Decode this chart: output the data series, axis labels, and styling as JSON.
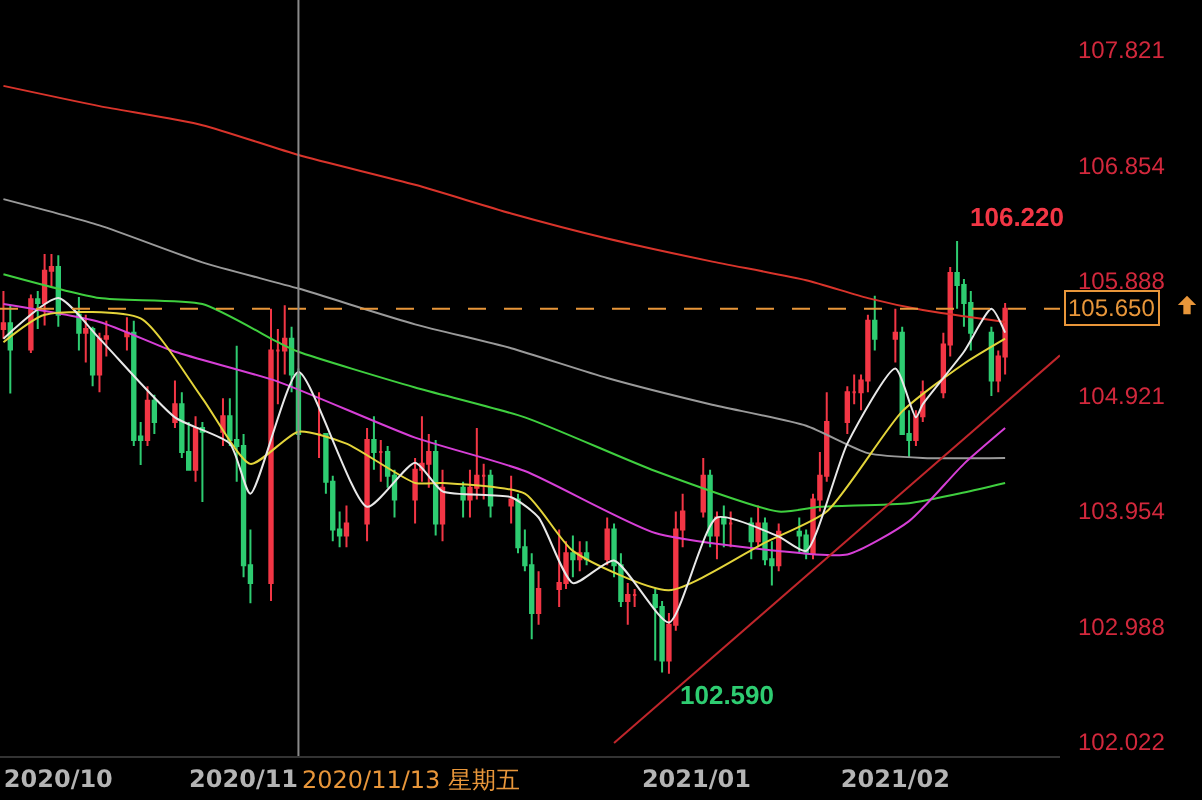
{
  "chart_data": {
    "type": "candlestick",
    "grid": false,
    "colors": [
      "#f23645",
      "#2ecc71",
      "#f23645",
      "#2ecc71",
      "#f23645",
      "#f23645",
      "#2ecc71",
      "#2ecc71",
      "#f23645",
      "#2ecc71",
      "#f23645",
      "#f23645",
      "#f23645",
      "#2ecc71",
      "#2ecc71",
      "#f23645",
      "#2ecc71",
      "#f23645",
      "#2ecc71",
      "#2ecc71",
      "#f23645",
      "#2ecc71",
      "#f23645",
      "#2ecc71",
      "#2ecc71",
      "#2ecc71",
      "#2ecc71",
      "#f23645",
      "#f23645",
      "#f23645",
      "#2ecc71",
      "#2ecc71",
      "#f23645",
      "#2ecc71",
      "#2ecc71",
      "#2ecc71",
      "#f23645",
      "#f23645",
      "#2ecc71",
      "#f23645",
      "#2ecc71",
      "#2ecc71",
      "#f23645",
      "#f23645",
      "#f23645",
      "#2ecc71",
      "#f23645",
      "#2ecc71",
      "#f23645",
      "#f23645",
      "#f23645",
      "#2ecc71",
      "#f23645",
      "#2ecc71",
      "#2ecc71",
      "#2ecc71",
      "#f23645",
      "#f23645",
      "#f23645",
      "#2ecc71",
      "#f23645",
      "#2ecc71",
      "#f23645",
      "#2ecc71",
      "#2ecc71",
      "#f23645",
      "#f23645",
      "#2ecc71",
      "#2ecc71",
      "#f23645",
      "#f23645",
      "#f23645",
      "#f23645",
      "#2ecc71",
      "#f23645",
      "#2ecc71",
      "#f23645",
      "#2ecc71",
      "#f23645",
      "#2ecc71",
      "#2ecc71",
      "#f23645",
      "#2ecc71",
      "#2ecc71",
      "#f23645",
      "#f23645",
      "#f23645",
      "#f23645",
      "#f23645",
      "#f23645",
      "#f23645",
      "#2ecc71",
      "#f23645",
      "#2ecc71",
      "#2ecc71",
      "#f23645",
      "#f23645",
      "#f23645",
      "#f23645",
      "#2ecc71",
      "#2ecc71",
      "#2ecc71",
      "#2ecc71",
      "#f23645",
      "#f23645"
    ],
    "x": [
      "2020-10-01",
      "2020-10-02",
      "2020-10-05",
      "2020-10-06",
      "2020-10-07",
      "2020-10-08",
      "2020-10-09",
      "2020-10-12",
      "2020-10-13",
      "2020-10-14",
      "2020-10-15",
      "2020-10-16",
      "2020-10-19",
      "2020-10-20",
      "2020-10-21",
      "2020-10-22",
      "2020-10-23",
      "2020-10-26",
      "2020-10-27",
      "2020-10-28",
      "2020-10-29",
      "2020-10-30",
      "2020-11-02",
      "2020-11-03",
      "2020-11-04",
      "2020-11-05",
      "2020-11-06",
      "2020-11-09",
      "2020-11-10",
      "2020-11-11",
      "2020-11-12",
      "2020-11-13",
      "2020-11-16",
      "2020-11-17",
      "2020-11-18",
      "2020-11-19",
      "2020-11-20",
      "2020-11-23",
      "2020-11-24",
      "2020-11-25",
      "2020-11-26",
      "2020-11-27",
      "2020-11-30",
      "2020-12-01",
      "2020-12-02",
      "2020-12-03",
      "2020-12-04",
      "2020-12-07",
      "2020-12-08",
      "2020-12-09",
      "2020-12-10",
      "2020-12-11",
      "2020-12-14",
      "2020-12-15",
      "2020-12-16",
      "2020-12-17",
      "2020-12-18",
      "2020-12-21",
      "2020-12-22",
      "2020-12-23",
      "2020-12-24",
      "2020-12-25",
      "2020-12-28",
      "2020-12-29",
      "2020-12-30",
      "2020-12-31",
      "2021-01-01",
      "2021-01-04",
      "2021-01-05",
      "2021-01-06",
      "2021-01-07",
      "2021-01-08",
      "2021-01-11",
      "2021-01-12",
      "2021-01-13",
      "2021-01-14",
      "2021-01-15",
      "2021-01-18",
      "2021-01-19",
      "2021-01-20",
      "2021-01-21",
      "2021-01-22",
      "2021-01-25",
      "2021-01-26",
      "2021-01-27",
      "2021-01-28",
      "2021-01-29",
      "2021-02-01",
      "2021-02-02",
      "2021-02-03",
      "2021-02-04",
      "2021-02-05",
      "2021-02-08",
      "2021-02-09",
      "2021-02-10",
      "2021-02-11",
      "2021-02-12",
      "2021-02-15",
      "2021-02-16",
      "2021-02-17",
      "2021-02-18",
      "2021-02-19",
      "2021-02-22",
      "2021-02-23",
      "2021-02-24"
    ],
    "ohlc": [
      [
        105.48,
        105.8,
        105.4,
        105.53
      ],
      [
        105.53,
        105.68,
        104.94,
        105.31
      ],
      [
        105.31,
        105.77,
        105.28,
        105.73
      ],
      [
        105.73,
        105.8,
        105.48,
        105.7
      ],
      [
        105.7,
        106.11,
        105.51,
        105.97
      ],
      [
        105.97,
        106.11,
        105.84,
        106.0
      ],
      [
        106.0,
        106.1,
        105.5,
        105.6
      ],
      [
        105.6,
        105.75,
        105.3,
        105.45
      ],
      [
        105.45,
        105.6,
        105.2,
        105.48
      ],
      [
        105.48,
        105.5,
        105.0,
        105.1
      ],
      [
        105.1,
        105.45,
        104.95,
        105.4
      ],
      [
        105.4,
        105.55,
        105.25,
        105.42
      ],
      [
        105.42,
        105.58,
        105.3,
        105.45
      ],
      [
        105.45,
        105.55,
        104.5,
        104.55
      ],
      [
        104.58,
        104.7,
        104.34,
        104.55
      ],
      [
        104.55,
        105.0,
        104.5,
        104.88
      ],
      [
        104.88,
        104.93,
        104.6,
        104.7
      ],
      [
        104.7,
        105.05,
        104.65,
        104.85
      ],
      [
        104.85,
        104.95,
        104.4,
        104.45
      ],
      [
        104.45,
        104.7,
        104.3,
        104.3
      ],
      [
        104.3,
        104.75,
        104.2,
        104.65
      ],
      [
        104.65,
        104.7,
        104.03,
        104.62
      ],
      [
        104.62,
        104.9,
        104.5,
        104.75
      ],
      [
        104.75,
        104.9,
        104.5,
        104.55
      ],
      [
        104.55,
        105.34,
        104.2,
        104.5
      ],
      [
        104.5,
        104.6,
        103.4,
        103.5
      ],
      [
        103.5,
        103.8,
        103.18,
        103.35
      ],
      [
        103.35,
        105.65,
        103.2,
        105.3
      ],
      [
        105.3,
        105.48,
        104.85,
        105.3
      ],
      [
        105.3,
        105.68,
        105.1,
        105.4
      ],
      [
        105.4,
        105.5,
        104.95,
        105.1
      ],
      [
        105.1,
        105.15,
        104.55,
        104.6
      ],
      [
        104.6,
        104.95,
        104.4,
        104.6
      ],
      [
        104.6,
        104.6,
        104.1,
        104.2
      ],
      [
        104.2,
        104.25,
        103.7,
        103.8
      ],
      [
        103.8,
        103.95,
        103.65,
        103.75
      ],
      [
        103.75,
        104.0,
        103.65,
        103.85
      ],
      [
        103.85,
        104.65,
        103.7,
        104.55
      ],
      [
        104.55,
        104.75,
        104.3,
        104.45
      ],
      [
        104.45,
        104.55,
        104.2,
        104.45
      ],
      [
        104.45,
        104.5,
        104.15,
        104.25
      ],
      [
        104.25,
        104.3,
        103.9,
        104.05
      ],
      [
        104.05,
        104.4,
        103.85,
        104.3
      ],
      [
        104.3,
        104.75,
        104.2,
        104.35
      ],
      [
        104.35,
        104.6,
        104.15,
        104.45
      ],
      [
        104.45,
        104.55,
        103.75,
        103.85
      ],
      [
        103.85,
        104.3,
        103.7,
        104.15
      ],
      [
        104.15,
        104.2,
        103.9,
        104.05
      ],
      [
        104.05,
        104.3,
        103.9,
        104.15
      ],
      [
        104.15,
        104.65,
        104.05,
        104.25
      ],
      [
        104.25,
        104.35,
        104.05,
        104.25
      ],
      [
        104.25,
        104.3,
        103.9,
        104.0
      ],
      [
        104.0,
        104.25,
        103.85,
        104.05
      ],
      [
        104.05,
        104.1,
        103.6,
        103.65
      ],
      [
        103.65,
        103.8,
        103.45,
        103.5
      ],
      [
        103.5,
        103.6,
        102.88,
        103.1
      ],
      [
        103.1,
        103.45,
        103.0,
        103.3
      ],
      [
        103.3,
        103.8,
        103.15,
        103.35
      ],
      [
        103.35,
        103.7,
        103.3,
        103.6
      ],
      [
        103.6,
        103.75,
        103.4,
        103.55
      ],
      [
        103.55,
        103.7,
        103.45,
        103.6
      ],
      [
        103.6,
        103.7,
        103.5,
        103.55
      ],
      [
        103.55,
        103.9,
        103.5,
        103.8
      ],
      [
        103.8,
        103.85,
        103.4,
        103.5
      ],
      [
        103.5,
        103.6,
        103.15,
        103.2
      ],
      [
        103.2,
        103.35,
        103.0,
        103.25
      ],
      [
        103.25,
        103.3,
        103.15,
        103.25
      ],
      [
        103.25,
        103.3,
        102.7,
        103.15
      ],
      [
        103.15,
        103.2,
        102.6,
        102.7
      ],
      [
        102.7,
        103.1,
        102.59,
        103.0
      ],
      [
        103.0,
        103.95,
        102.95,
        103.8
      ],
      [
        103.8,
        104.1,
        103.65,
        103.95
      ],
      [
        103.95,
        104.4,
        103.9,
        104.25
      ],
      [
        104.25,
        104.3,
        103.65,
        103.75
      ],
      [
        103.75,
        103.95,
        103.55,
        103.9
      ],
      [
        103.9,
        104.0,
        103.65,
        103.85
      ],
      [
        103.85,
        103.95,
        103.65,
        103.85
      ],
      [
        103.85,
        103.9,
        103.55,
        103.7
      ],
      [
        103.7,
        104.0,
        103.65,
        103.85
      ],
      [
        103.85,
        103.9,
        103.5,
        103.55
      ],
      [
        103.55,
        103.7,
        103.33,
        103.5
      ],
      [
        103.5,
        103.85,
        103.45,
        103.78
      ],
      [
        103.78,
        103.9,
        103.6,
        103.75
      ],
      [
        103.75,
        103.8,
        103.55,
        103.6
      ],
      [
        103.6,
        104.1,
        103.55,
        104.05
      ],
      [
        104.05,
        104.45,
        103.95,
        104.25
      ],
      [
        104.25,
        104.95,
        104.2,
        104.7
      ],
      [
        104.7,
        105.0,
        104.6,
        104.95
      ],
      [
        104.95,
        105.1,
        104.85,
        104.95
      ],
      [
        104.95,
        105.1,
        104.8,
        105.05
      ],
      [
        105.05,
        105.6,
        104.95,
        105.55
      ],
      [
        105.55,
        105.76,
        105.3,
        105.4
      ],
      [
        105.4,
        105.65,
        105.2,
        105.45
      ],
      [
        105.45,
        105.5,
        104.6,
        104.6
      ],
      [
        104.6,
        104.8,
        104.4,
        104.55
      ],
      [
        104.55,
        104.8,
        104.5,
        104.75
      ],
      [
        104.75,
        105.05,
        104.7,
        104.95
      ],
      [
        104.95,
        105.45,
        104.9,
        105.35
      ],
      [
        105.35,
        106.0,
        105.25,
        105.95
      ],
      [
        105.95,
        106.22,
        105.65,
        105.85
      ],
      [
        105.85,
        105.9,
        105.5,
        105.7
      ],
      [
        105.7,
        105.8,
        105.3,
        105.45
      ],
      [
        105.45,
        105.5,
        104.92,
        105.05
      ],
      [
        105.05,
        105.3,
        104.95,
        105.25
      ],
      [
        105.25,
        105.7,
        105.1,
        105.65
      ]
    ],
    "series": [
      {
        "type": "line",
        "color": "#d9342b",
        "x": [
          "2020-10-01",
          "2020-10-15",
          "2020-10-30",
          "2020-11-13",
          "2020-11-30",
          "2020-12-14",
          "2020-12-28",
          "2021-01-12",
          "2021-01-26",
          "2021-02-04",
          "2021-02-12",
          "2021-02-24"
        ],
        "values": [
          107.52,
          107.35,
          107.19,
          106.94,
          106.69,
          106.45,
          106.24,
          106.05,
          105.89,
          105.74,
          105.64,
          105.54
        ]
      },
      {
        "type": "line",
        "color": "#9a9a9a",
        "x": [
          "2020-10-01",
          "2020-10-15",
          "2020-10-30",
          "2020-11-13",
          "2020-11-30",
          "2020-12-14",
          "2020-12-28",
          "2021-01-12",
          "2021-01-26",
          "2021-02-04",
          "2021-02-12",
          "2021-02-24"
        ],
        "values": [
          106.57,
          106.35,
          106.04,
          105.82,
          105.52,
          105.32,
          105.07,
          104.85,
          104.67,
          104.44,
          104.4,
          104.4
        ]
      },
      {
        "type": "line",
        "color": "#3fcf3f",
        "x": [
          "2020-10-01",
          "2020-10-15",
          "2020-10-30",
          "2020-11-10",
          "2020-11-13",
          "2020-11-30",
          "2020-12-16",
          "2021-01-04",
          "2021-01-22",
          "2021-01-28",
          "2021-02-10",
          "2021-02-18",
          "2021-02-24"
        ],
        "values": [
          105.94,
          105.74,
          105.69,
          105.37,
          105.29,
          104.99,
          104.74,
          104.29,
          103.95,
          103.99,
          104.02,
          104.11,
          104.19
        ]
      },
      {
        "type": "line",
        "color": "#d63fd6",
        "x": [
          "2020-10-01",
          "2020-10-15",
          "2020-10-26",
          "2020-11-10",
          "2020-11-30",
          "2020-12-16",
          "2021-01-04",
          "2021-01-22",
          "2021-02-01",
          "2021-02-10",
          "2021-02-18",
          "2021-02-24"
        ],
        "values": [
          105.69,
          105.54,
          105.29,
          105.04,
          104.57,
          104.29,
          103.77,
          103.62,
          103.59,
          103.87,
          104.35,
          104.65
        ]
      },
      {
        "type": "line",
        "color": "#e3d43a",
        "x": [
          "2020-10-01",
          "2020-10-07",
          "2020-10-21",
          "2020-10-30",
          "2020-11-06",
          "2020-11-13",
          "2020-11-20",
          "2020-11-30",
          "2020-12-04",
          "2020-12-16",
          "2020-12-23",
          "2021-01-06",
          "2021-01-20",
          "2021-01-29",
          "2021-02-09",
          "2021-02-18",
          "2021-02-24"
        ],
        "values": [
          105.37,
          105.6,
          105.57,
          104.9,
          104.35,
          104.62,
          104.52,
          104.19,
          104.19,
          104.1,
          103.62,
          103.29,
          103.69,
          103.95,
          104.79,
          105.19,
          105.4
        ]
      },
      {
        "type": "line",
        "color": "#e8e8e8",
        "x": [
          "2020-10-01",
          "2020-10-09",
          "2020-10-15",
          "2020-10-26",
          "2020-11-03",
          "2020-11-06",
          "2020-11-13",
          "2020-11-23",
          "2020-11-30",
          "2020-12-04",
          "2020-12-14",
          "2020-12-18",
          "2020-12-23",
          "2020-12-29",
          "2021-01-06",
          "2021-01-13",
          "2021-01-22",
          "2021-01-26",
          "2021-02-01",
          "2021-02-08",
          "2021-02-11",
          "2021-02-12",
          "2021-02-18",
          "2021-02-22",
          "2021-02-24"
        ],
        "values": [
          105.4,
          105.74,
          105.4,
          104.74,
          104.52,
          104.1,
          105.12,
          103.99,
          104.36,
          104.12,
          104.07,
          103.9,
          103.35,
          103.54,
          103.02,
          103.9,
          103.74,
          103.62,
          104.52,
          105.15,
          104.74,
          104.85,
          105.29,
          105.65,
          105.45
        ]
      },
      {
        "type": "line",
        "color": "#c0262b",
        "x": [
          "2020-12-29",
          "2021-03-04"
        ],
        "values": [
          102.01,
          105.26
        ]
      }
    ],
    "xlim": [
      "2020-09-30T12:00",
      "2021-03-04"
    ],
    "xticks": [
      {
        "value": "2020-10-09",
        "label": "2020/10"
      },
      {
        "value": "2020-11-05",
        "label": "2020/11"
      },
      {
        "value": "2021-01-10",
        "label": "2021/01"
      },
      {
        "value": "2021-02-08",
        "label": "2021/02"
      }
    ],
    "ylim": [
      101.9,
      108.24
    ],
    "yticks": [
      107.821,
      106.854,
      105.888,
      104.921,
      103.954,
      102.988,
      102.022
    ],
    "ref_lines": [
      {
        "axis": "y",
        "value": 105.65,
        "label": "105.650",
        "color": "#e8963a",
        "line_style": "dashed"
      },
      {
        "axis": "x",
        "value": "2020-11-13",
        "label": "2020/11/13 星期五",
        "color": "#8a8a8a"
      }
    ],
    "annotations": [
      {
        "text": "106.220",
        "x": "2021-02-17",
        "y": 106.22
      },
      {
        "text": "102.590",
        "x": "2021-01-06",
        "y": 102.59
      }
    ]
  }
}
